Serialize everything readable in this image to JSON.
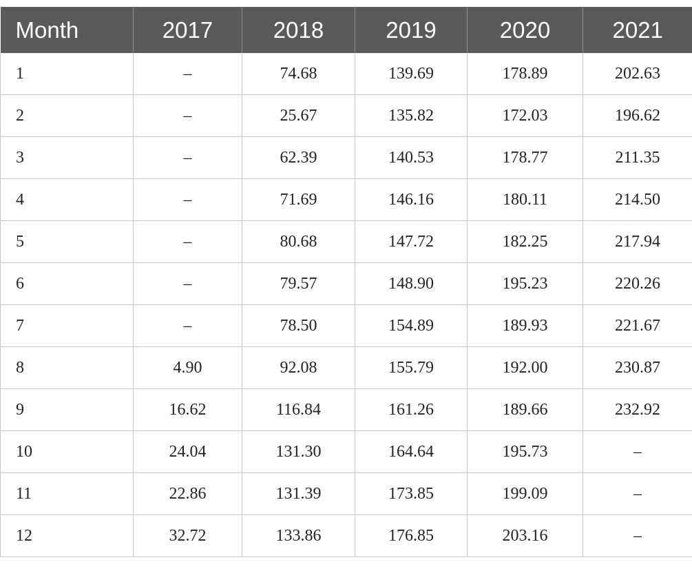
{
  "table": {
    "headers": [
      "Month",
      "2017",
      "2018",
      "2019",
      "2020",
      "2021"
    ],
    "rows": [
      [
        "1",
        "–",
        "74.68",
        "139.69",
        "178.89",
        "202.63"
      ],
      [
        "2",
        "–",
        "25.67",
        "135.82",
        "172.03",
        "196.62"
      ],
      [
        "3",
        "–",
        "62.39",
        "140.53",
        "178.77",
        "211.35"
      ],
      [
        "4",
        "–",
        "71.69",
        "146.16",
        "180.11",
        "214.50"
      ],
      [
        "5",
        "–",
        "80.68",
        "147.72",
        "182.25",
        "217.94"
      ],
      [
        "6",
        "–",
        "79.57",
        "148.90",
        "195.23",
        "220.26"
      ],
      [
        "7",
        "–",
        "78.50",
        "154.89",
        "189.93",
        "221.67"
      ],
      [
        "8",
        "4.90",
        "92.08",
        "155.79",
        "192.00",
        "230.87"
      ],
      [
        "9",
        "16.62",
        "116.84",
        "161.26",
        "189.66",
        "232.92"
      ],
      [
        "10",
        "24.04",
        "131.30",
        "164.64",
        "195.73",
        "–"
      ],
      [
        "11",
        "22.86",
        "131.39",
        "173.85",
        "199.09",
        "–"
      ],
      [
        "12",
        "32.72",
        "133.86",
        "176.85",
        "203.16",
        "–"
      ]
    ]
  },
  "colors": {
    "header_bg": "#5a5a5a",
    "header_text": "#ffffff",
    "grid_line": "#c8c8c8",
    "cell_text": "#222222"
  }
}
